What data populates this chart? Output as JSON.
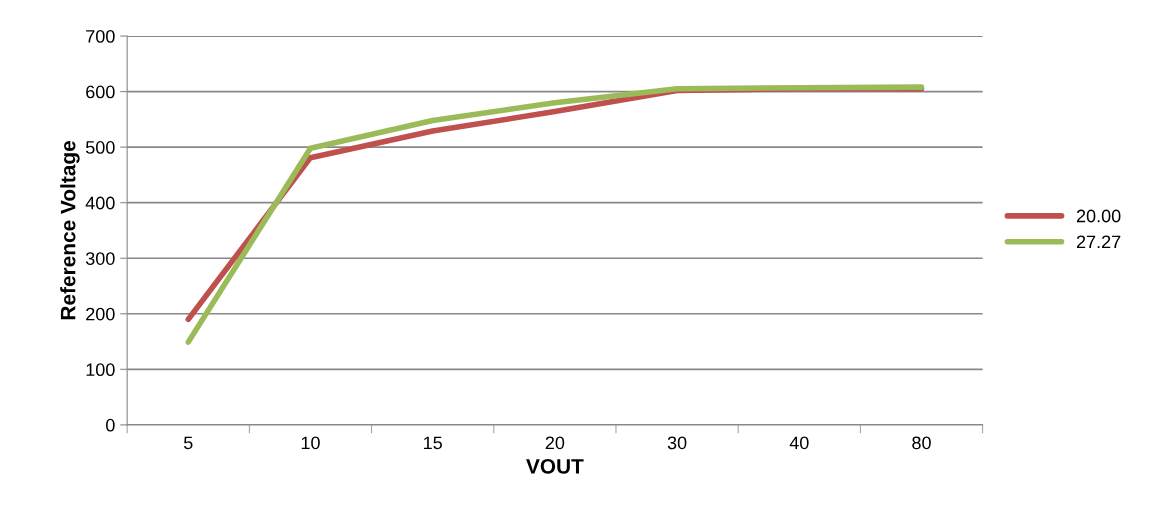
{
  "chart_data": {
    "type": "line",
    "xlabel": "VOUT",
    "ylabel": "Reference Voltage",
    "categories": [
      "5",
      "10",
      "15",
      "20",
      "30",
      "40",
      "80"
    ],
    "series": [
      {
        "name": "20.00",
        "color": "#c0504d",
        "values": [
          190,
          481,
          529,
          564,
          602,
          605,
          605
        ]
      },
      {
        "name": "27.27",
        "color": "#9bbb59",
        "values": [
          149,
          498,
          548,
          580,
          605,
          607,
          608
        ]
      }
    ],
    "ylim": [
      0,
      700
    ],
    "yticks": [
      0,
      100,
      200,
      300,
      400,
      500,
      600,
      700
    ],
    "grid": "y",
    "legend": "right",
    "marker": "none",
    "line_style": "solid"
  }
}
